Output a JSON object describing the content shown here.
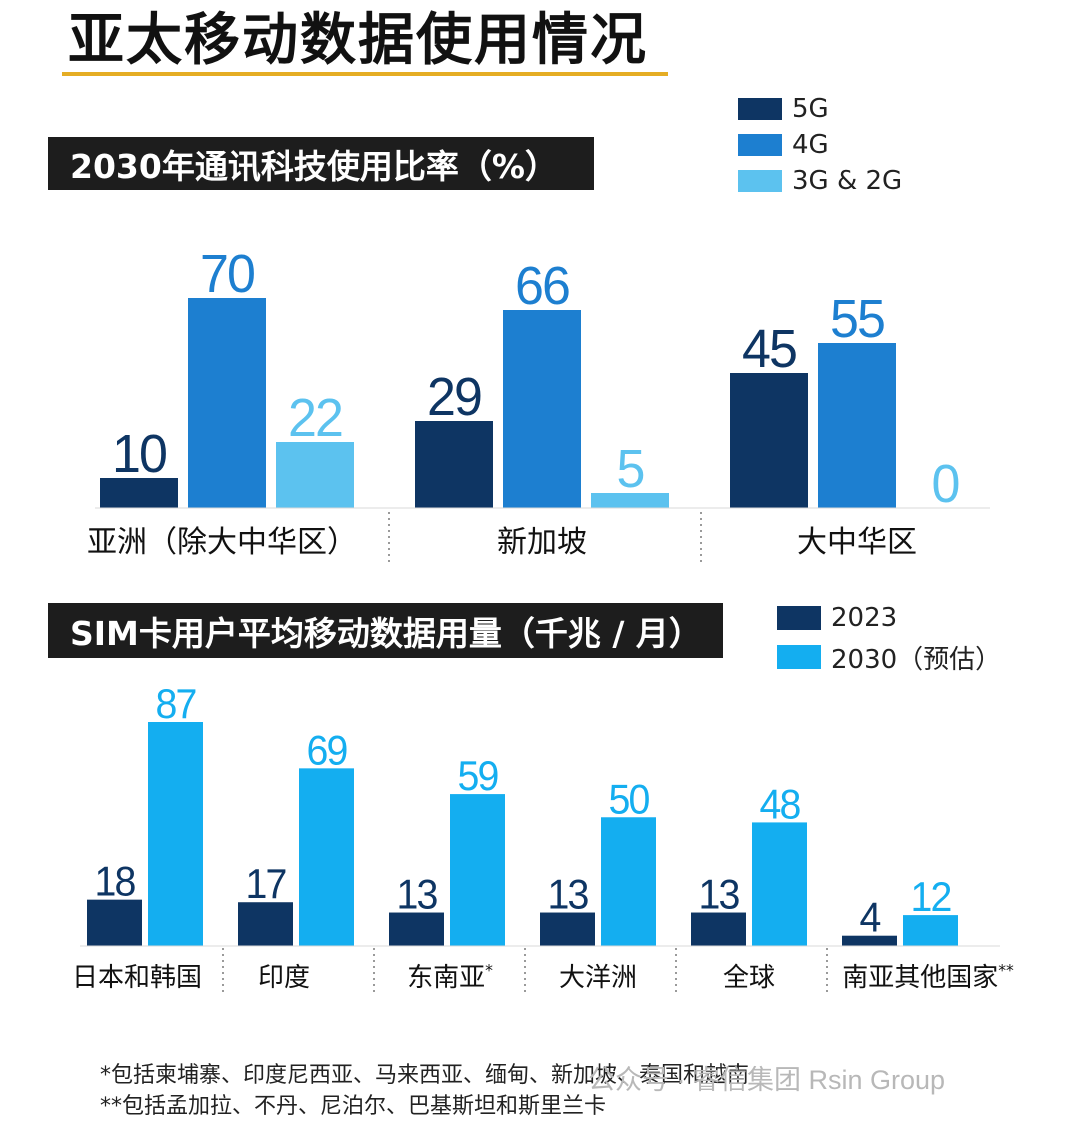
{
  "title": "亚太移动数据使用情况",
  "watermark": "公众号 · 睿信集团 Rsin Group",
  "footnotes": [
    "*包括柬埔寨、印度尼西亚、马来西亚、缅甸、新加坡、泰国和越南",
    "**包括孟加拉、不丹、尼泊尔、巴基斯坦和斯里兰卡"
  ],
  "colors": {
    "5G": "#0e3563",
    "4G": "#1d7fd0",
    "3G_2G": "#5cc2ef",
    "2023": "#0e3563",
    "2030": "#14aef0",
    "value_dark": "#0e3563",
    "banner": "#1d1d1d",
    "title_underline": "#e5ad24"
  },
  "chart_data": [
    {
      "type": "bar",
      "title": "2030年通讯科技使用比率（%）",
      "legend_placement": "top-right",
      "categories": [
        "亚洲（除大中华区）",
        "新加坡",
        "大中华区"
      ],
      "series": [
        {
          "name": "5G",
          "values": [
            10,
            29,
            45
          ]
        },
        {
          "name": "4G",
          "values": [
            70,
            66,
            55
          ]
        },
        {
          "name": "3G & 2G",
          "values": [
            22,
            5,
            0
          ]
        }
      ],
      "xlabel": "",
      "ylabel": "",
      "ylim": [
        0,
        70
      ],
      "grid": false
    },
    {
      "type": "bar",
      "title": "SIM卡用户平均移动数据用量（千兆 / 月）",
      "legend_placement": "top-right",
      "categories": [
        "日本和韩国",
        "印度",
        "东南亚",
        "大洋洲",
        "全球",
        "南亚其他国家"
      ],
      "category_marks": [
        "",
        "",
        "*",
        "",
        "",
        "**"
      ],
      "series": [
        {
          "name": "2023",
          "values": [
            18,
            17,
            13,
            13,
            13,
            4
          ]
        },
        {
          "name": "2030（预估）",
          "values": [
            87,
            69,
            59,
            50,
            48,
            12
          ]
        }
      ],
      "xlabel": "",
      "ylabel": "",
      "ylim": [
        0,
        87
      ],
      "grid": false
    }
  ]
}
